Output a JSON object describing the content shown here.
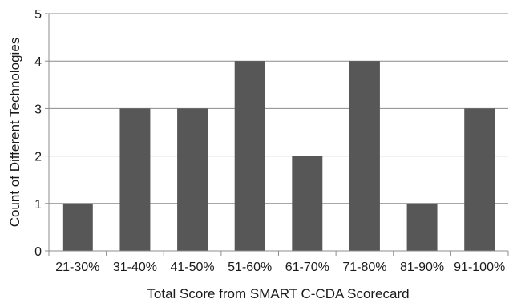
{
  "chart_data": {
    "type": "bar",
    "categories": [
      "21-30%",
      "31-40%",
      "41-50%",
      "51-60%",
      "61-70%",
      "71-80%",
      "81-90%",
      "91-100%"
    ],
    "values": [
      1,
      3,
      3,
      4,
      2,
      4,
      1,
      3
    ],
    "xlabel": "Total Score from SMART C-CDA Scorecard",
    "ylabel": "Count of Different Technologies",
    "ylim": [
      0,
      5
    ],
    "yticks": [
      0,
      1,
      2,
      3,
      4,
      5
    ],
    "grid": true,
    "legend": "none",
    "colors": {
      "bar": "#575757",
      "grid": "#8c8c8c",
      "axis": "#8c8c8c",
      "text": "#1a1a1a"
    }
  }
}
